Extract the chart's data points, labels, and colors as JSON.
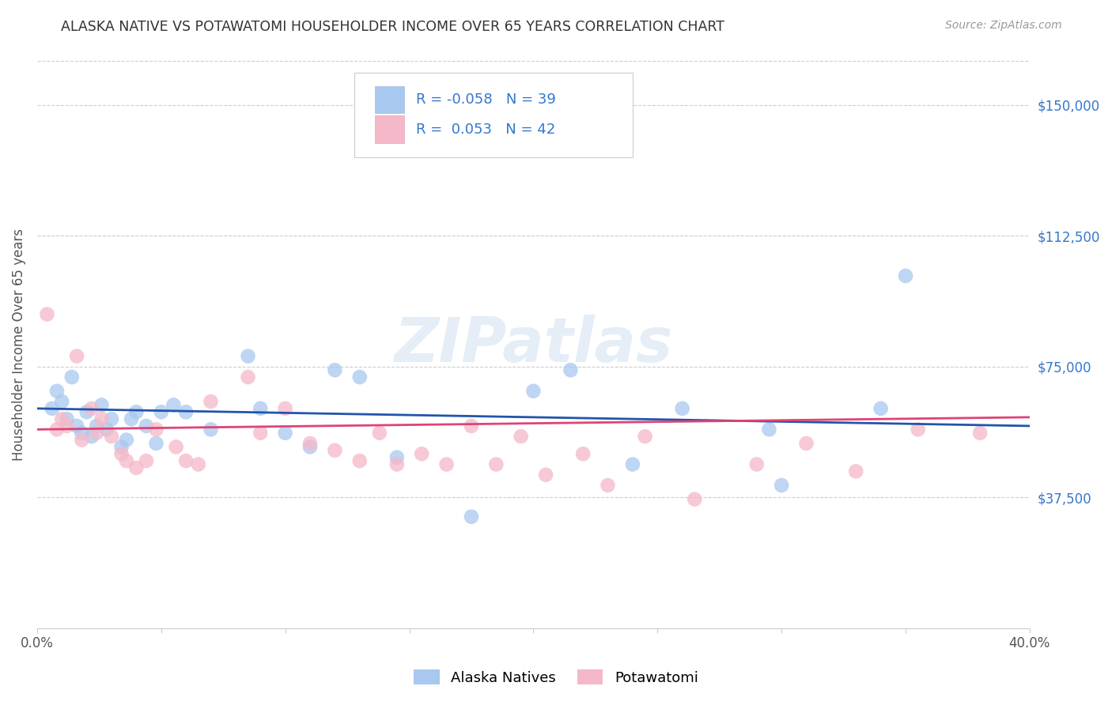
{
  "title": "ALASKA NATIVE VS POTAWATOMI HOUSEHOLDER INCOME OVER 65 YEARS CORRELATION CHART",
  "source": "Source: ZipAtlas.com",
  "ylabel": "Householder Income Over 65 years",
  "xlim": [
    0.0,
    0.4
  ],
  "ylim": [
    0,
    162500
  ],
  "xticks": [
    0.0,
    0.05,
    0.1,
    0.15,
    0.2,
    0.25,
    0.3,
    0.35,
    0.4
  ],
  "xticklabels": [
    "0.0%",
    "",
    "",
    "",
    "",
    "",
    "",
    "",
    "40.0%"
  ],
  "yticks": [
    0,
    37500,
    75000,
    112500,
    150000
  ],
  "yticklabels": [
    "",
    "$37,500",
    "$75,000",
    "$112,500",
    "$150,000"
  ],
  "color_blue": "#A8C8F0",
  "color_pink": "#F5B8C8",
  "line_blue": "#2255AA",
  "line_pink": "#DD4477",
  "r_blue": -0.058,
  "n_blue": 39,
  "r_pink": 0.053,
  "n_pink": 42,
  "watermark": "ZIPatlas",
  "alaska_x": [
    0.006,
    0.008,
    0.01,
    0.012,
    0.014,
    0.016,
    0.018,
    0.02,
    0.022,
    0.024,
    0.026,
    0.028,
    0.03,
    0.034,
    0.036,
    0.038,
    0.04,
    0.044,
    0.048,
    0.05,
    0.055,
    0.06,
    0.07,
    0.085,
    0.09,
    0.1,
    0.11,
    0.12,
    0.13,
    0.145,
    0.175,
    0.2,
    0.215,
    0.24,
    0.26,
    0.295,
    0.3,
    0.34,
    0.35
  ],
  "alaska_y": [
    63000,
    68000,
    65000,
    60000,
    72000,
    58000,
    56000,
    62000,
    55000,
    58000,
    64000,
    57000,
    60000,
    52000,
    54000,
    60000,
    62000,
    58000,
    53000,
    62000,
    64000,
    62000,
    57000,
    78000,
    63000,
    56000,
    52000,
    74000,
    72000,
    49000,
    32000,
    68000,
    74000,
    47000,
    63000,
    57000,
    41000,
    63000,
    101000
  ],
  "potawatomi_x": [
    0.004,
    0.008,
    0.01,
    0.012,
    0.016,
    0.018,
    0.022,
    0.024,
    0.026,
    0.03,
    0.034,
    0.036,
    0.04,
    0.044,
    0.048,
    0.056,
    0.06,
    0.065,
    0.07,
    0.085,
    0.09,
    0.1,
    0.11,
    0.12,
    0.13,
    0.138,
    0.145,
    0.155,
    0.165,
    0.175,
    0.185,
    0.195,
    0.205,
    0.22,
    0.23,
    0.245,
    0.265,
    0.29,
    0.31,
    0.33,
    0.355,
    0.38
  ],
  "potawatomi_y": [
    90000,
    57000,
    60000,
    58000,
    78000,
    54000,
    63000,
    56000,
    60000,
    55000,
    50000,
    48000,
    46000,
    48000,
    57000,
    52000,
    48000,
    47000,
    65000,
    72000,
    56000,
    63000,
    53000,
    51000,
    48000,
    56000,
    47000,
    50000,
    47000,
    58000,
    47000,
    55000,
    44000,
    50000,
    41000,
    55000,
    37000,
    47000,
    53000,
    45000,
    57000,
    56000
  ],
  "legend_labels": [
    "Alaska Natives",
    "Potawatomi"
  ],
  "title_color": "#333333",
  "tick_color_y": "#3377CC",
  "grid_color": "#CCCCCC",
  "legend_r_color": "#3377CC",
  "legend_n_color": "#3377CC"
}
